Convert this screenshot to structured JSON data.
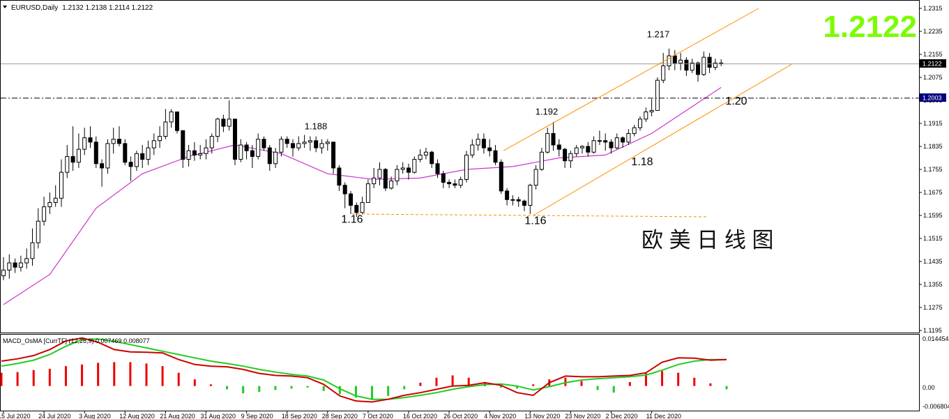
{
  "header": {
    "symbol": "EURUSD,Daily",
    "ohlc": "1.2132 1.2138 1.2114 1.2122"
  },
  "big_price": "1.2122",
  "watermark": "欧 美 日 线 图",
  "colors": {
    "bull_body": "#ffffff",
    "bear_body": "#000000",
    "ma": "#cc33cc",
    "channel": "#ff8c00",
    "big_price": "#7cfc00",
    "macd_fast": "#cc0000",
    "macd_signal": "#22cc22",
    "osma_pos": "#ee0000",
    "osma_neg": "#22cc22"
  },
  "price_labels": {
    "current": "1.2122",
    "level": "1.2003"
  },
  "annotations": [
    {
      "text": "1.217",
      "date": "1 Dec 2020",
      "price": 1.2215
    },
    {
      "text": "1.192",
      "date": "3 Nov 2020",
      "price": 1.1945
    },
    {
      "text": "1.188",
      "date": "14 Sep 2020",
      "price": 1.1895
    },
    {
      "text": "1.20",
      "date": "14 Dec 2020",
      "price": 1.198
    },
    {
      "text": "1.18",
      "date": "19 Nov 2020",
      "price": 1.177
    },
    {
      "text": "1.16",
      "date": "25 Sep 2020",
      "price": 1.157
    },
    {
      "text": "1.16",
      "date": "4 Nov 2020",
      "price": 1.1565
    }
  ],
  "macd": {
    "label": "MACD_OsMA [CurrTF] (12,26,9) 0.007469 0.008077",
    "axis_ticks": [
      "0.014454",
      "0.00",
      "-0.006804"
    ]
  },
  "chart_data": {
    "type": "candlestick",
    "title": "EURUSD,Daily",
    "y_ticks": [
      "1.2315",
      "1.2235",
      "1.2155",
      "1.2075",
      "1.1995",
      "1.1915",
      "1.1835",
      "1.1755",
      "1.1675",
      "1.1595",
      "1.1515",
      "1.1435",
      "1.1355",
      "1.1275",
      "1.1195"
    ],
    "ylim": [
      1.1195,
      1.2315
    ],
    "x_ticks": [
      "15 Jul 2020",
      "24 Jul 2020",
      "3 Aug 2020",
      "12 Aug 2020",
      "21 Aug 2020",
      "31 Aug 2020",
      "9 Sep 2020",
      "18 Sep 2020",
      "28 Sep 2020",
      "7 Oct 2020",
      "16 Oct 2020",
      "26 Oct 2020",
      "4 Nov 2020",
      "13 Nov 2020",
      "23 Nov 2020",
      "2 Dec 2020",
      "11 Dec 2020"
    ],
    "close": [
      1.1405,
      1.143,
      1.1415,
      1.143,
      1.1445,
      1.15,
      1.1575,
      1.1625,
      1.164,
      1.1655,
      1.1745,
      1.18,
      1.178,
      1.1825,
      1.1865,
      1.185,
      1.1775,
      1.176,
      1.1845,
      1.186,
      1.1845,
      1.178,
      1.1765,
      1.181,
      1.179,
      1.183,
      1.1855,
      1.187,
      1.192,
      1.1955,
      1.189,
      1.179,
      1.182,
      1.1805,
      1.181,
      1.183,
      1.187,
      1.193,
      1.1905,
      1.193,
      1.179,
      1.184,
      1.182,
      1.18,
      1.186,
      1.183,
      1.1775,
      1.1815,
      1.186,
      1.1845,
      1.183,
      1.1845,
      1.185,
      1.1855,
      1.183,
      1.1845,
      1.185,
      1.176,
      1.17,
      1.167,
      1.163,
      1.1605,
      1.164,
      1.1705,
      1.1725,
      1.1755,
      1.169,
      1.1715,
      1.1755,
      1.176,
      1.1745,
      1.179,
      1.1805,
      1.1815,
      1.1775,
      1.174,
      1.171,
      1.1705,
      1.17,
      1.172,
      1.1805,
      1.184,
      1.186,
      1.183,
      1.182,
      1.178,
      1.168,
      1.165,
      1.165,
      1.1645,
      1.163,
      1.17,
      1.1755,
      1.1815,
      1.188,
      1.184,
      1.1825,
      1.1785,
      1.181,
      1.183,
      1.1835,
      1.1815,
      1.1855,
      1.1855,
      1.185,
      1.183,
      1.1865,
      1.185,
      1.188,
      1.19,
      1.193,
      1.1955,
      1.196,
      1.2065,
      1.2115,
      1.215,
      1.2125,
      1.2135,
      1.21,
      1.2125,
      1.2085,
      1.2145,
      1.211,
      1.2125,
      1.2122
    ],
    "high": [
      1.145,
      1.146,
      1.1445,
      1.1455,
      1.148,
      1.155,
      1.162,
      1.166,
      1.1675,
      1.17,
      1.179,
      1.184,
      1.1905,
      1.188,
      1.19,
      1.1905,
      1.187,
      1.179,
      1.186,
      1.19,
      1.1905,
      1.186,
      1.18,
      1.182,
      1.184,
      1.1855,
      1.188,
      1.1905,
      1.1965,
      1.1965,
      1.195,
      1.188,
      1.184,
      1.185,
      1.184,
      1.186,
      1.188,
      1.1935,
      1.1945,
      1.1995,
      1.193,
      1.186,
      1.185,
      1.184,
      1.188,
      1.187,
      1.184,
      1.183,
      1.187,
      1.187,
      1.186,
      1.187,
      1.1875,
      1.187,
      1.187,
      1.186,
      1.186,
      1.185,
      1.177,
      1.171,
      1.168,
      1.164,
      1.166,
      1.172,
      1.176,
      1.178,
      1.176,
      1.173,
      1.177,
      1.178,
      1.1775,
      1.18,
      1.1825,
      1.183,
      1.182,
      1.179,
      1.175,
      1.172,
      1.172,
      1.173,
      1.182,
      1.186,
      1.188,
      1.188,
      1.186,
      1.184,
      1.179,
      1.169,
      1.1665,
      1.166,
      1.165,
      1.1705,
      1.177,
      1.183,
      1.19,
      1.192,
      1.186,
      1.183,
      1.182,
      1.184,
      1.184,
      1.185,
      1.187,
      1.189,
      1.188,
      1.186,
      1.188,
      1.187,
      1.1895,
      1.191,
      1.194,
      1.197,
      1.2,
      1.2075,
      1.216,
      1.2175,
      1.217,
      1.216,
      1.2145,
      1.214,
      1.213,
      1.2165,
      1.216,
      1.214,
      1.2138
    ],
    "low": [
      1.137,
      1.1375,
      1.1395,
      1.14,
      1.141,
      1.142,
      1.148,
      1.156,
      1.16,
      1.1625,
      1.1625,
      1.1725,
      1.175,
      1.176,
      1.1805,
      1.183,
      1.176,
      1.1695,
      1.174,
      1.181,
      1.1835,
      1.177,
      1.1715,
      1.175,
      1.176,
      1.177,
      1.1805,
      1.183,
      1.186,
      1.19,
      1.188,
      1.176,
      1.1765,
      1.1785,
      1.179,
      1.179,
      1.181,
      1.185,
      1.1885,
      1.189,
      1.177,
      1.178,
      1.179,
      1.176,
      1.179,
      1.182,
      1.175,
      1.176,
      1.18,
      1.183,
      1.18,
      1.182,
      1.183,
      1.182,
      1.1815,
      1.181,
      1.182,
      1.174,
      1.168,
      1.162,
      1.16,
      1.159,
      1.16,
      1.164,
      1.169,
      1.17,
      1.168,
      1.1685,
      1.17,
      1.174,
      1.172,
      1.174,
      1.178,
      1.179,
      1.176,
      1.1725,
      1.169,
      1.169,
      1.169,
      1.169,
      1.171,
      1.1795,
      1.182,
      1.181,
      1.18,
      1.177,
      1.167,
      1.163,
      1.163,
      1.1625,
      1.161,
      1.16,
      1.1685,
      1.175,
      1.181,
      1.182,
      1.18,
      1.176,
      1.176,
      1.18,
      1.181,
      1.18,
      1.181,
      1.184,
      1.182,
      1.181,
      1.1825,
      1.183,
      1.184,
      1.187,
      1.189,
      1.192,
      1.194,
      1.196,
      1.2055,
      1.21,
      1.21,
      1.21,
      1.208,
      1.209,
      1.206,
      1.208,
      1.209,
      1.21,
      1.2114
    ],
    "open_first": 1.1385,
    "ma_series": {
      "x_index": [
        0,
        8,
        16,
        24,
        32,
        40,
        48,
        56,
        64,
        72,
        80,
        88,
        96,
        104,
        112,
        118,
        124
      ],
      "values": [
        1.1285,
        1.139,
        1.162,
        1.174,
        1.18,
        1.184,
        1.181,
        1.174,
        1.172,
        1.1725,
        1.1755,
        1.1765,
        1.1795,
        1.1805,
        1.188,
        1.196,
        1.204
      ]
    },
    "channel": {
      "start_date": "29 Oct 2020",
      "upper": [
        1.182,
        1.2315
      ],
      "lower": [
        1.1595,
        1.212
      ]
    },
    "support_line": {
      "price": 1.1595,
      "from_date": "24 Sep 2020",
      "to_date": "15 Dec 2020"
    },
    "level_line": {
      "price": 1.2003
    },
    "macd_indicator": {
      "ylim": [
        -0.006804,
        0.014454
      ],
      "macd": [
        0.0075,
        0.0082,
        0.0092,
        0.011,
        0.0136,
        0.0145,
        0.0132,
        0.011,
        0.0103,
        0.0102,
        0.01,
        0.008,
        0.0065,
        0.006,
        0.0058,
        0.005,
        0.0038,
        0.0032,
        0.003,
        0.0025,
        0.0005,
        -0.003,
        -0.0045,
        -0.0048,
        -0.004,
        -0.0028,
        -0.002,
        -0.001,
        0.0,
        0.0002,
        0.001,
        0.0002,
        -0.002,
        -0.0028,
        0.001,
        0.003,
        0.0028,
        0.0028,
        0.003,
        0.0032,
        0.004,
        0.0072,
        0.0085,
        0.0084,
        0.0078,
        0.008
      ],
      "signal": [
        0.006,
        0.0068,
        0.0078,
        0.0095,
        0.012,
        0.014,
        0.0142,
        0.0135,
        0.0125,
        0.0115,
        0.0105,
        0.0095,
        0.0085,
        0.0075,
        0.0068,
        0.006,
        0.005,
        0.0042,
        0.0035,
        0.003,
        0.0018,
        -0.0008,
        -0.003,
        -0.004,
        -0.004,
        -0.0035,
        -0.0028,
        -0.002,
        -0.001,
        -0.0002,
        0.0004,
        0.0006,
        0.0,
        -0.0012,
        -0.0002,
        0.001,
        0.0018,
        0.0022,
        0.0025,
        0.0028,
        0.0033,
        0.0048,
        0.0065,
        0.0075,
        0.008,
        0.008
      ],
      "osma": [
        0.004,
        0.0042,
        0.0048,
        0.0052,
        0.006,
        0.0065,
        0.007,
        0.0072,
        0.0072,
        0.0068,
        0.006,
        0.004,
        0.002,
        0.0005,
        -0.001,
        -0.0022,
        -0.0018,
        -0.0012,
        -0.0008,
        -0.0005,
        -0.0015,
        -0.0025,
        -0.0035,
        -0.0042,
        -0.003,
        -0.001,
        0.001,
        0.0025,
        0.0032,
        0.0025,
        0.0012,
        -0.0005,
        -0.0008,
        0.0005,
        0.002,
        0.0025,
        0.0015,
        -0.0012,
        -0.002,
        0.0012,
        0.0038,
        0.0045,
        0.004,
        0.0025,
        0.0008,
        -0.001
      ]
    }
  }
}
